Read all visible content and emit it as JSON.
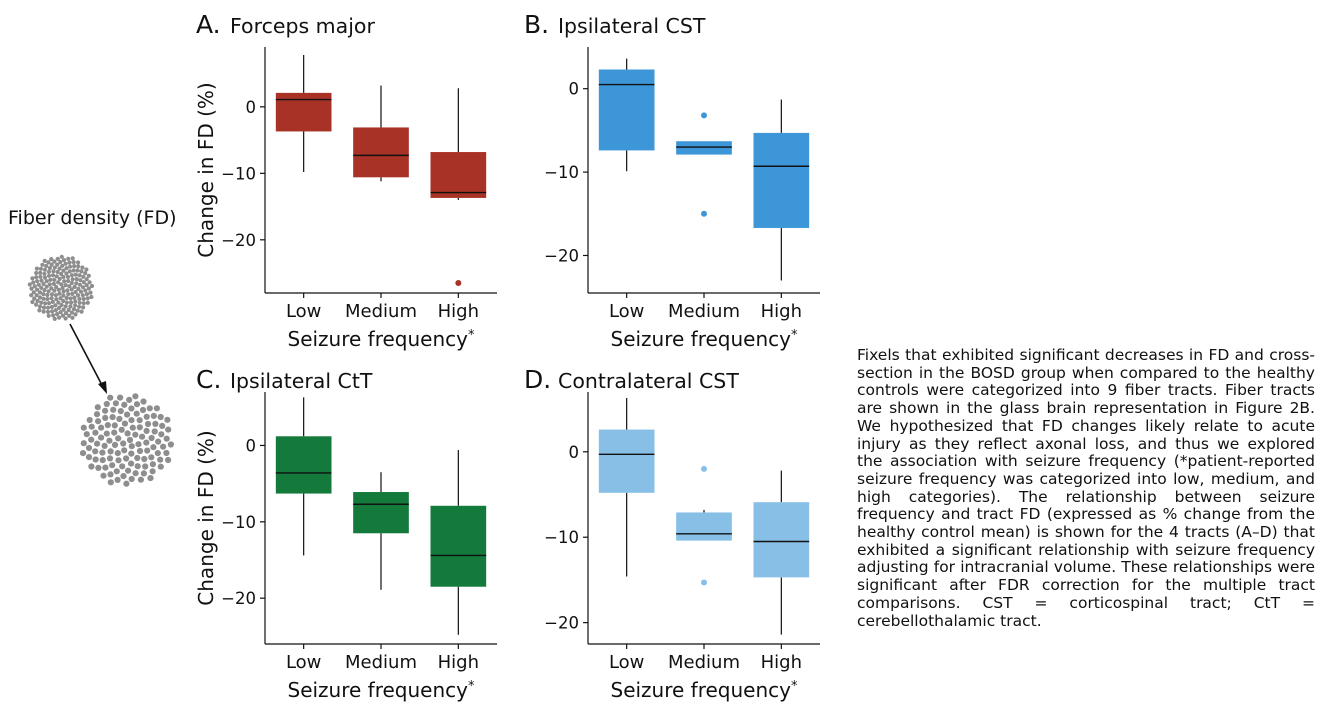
{
  "legend_schematic": {
    "label": "Fiber density (FD)",
    "dot_color": "#8e8e8e"
  },
  "colors": {
    "forceps_major": "#a93226",
    "ipsilateral_cst": "#3c96d7",
    "ipsilateral_ctt": "#137a3c",
    "contralateral_cst": "#88bfe6"
  },
  "caption": "Fixels that exhibited significant decreases in FD and cross-section in the BOSD group when compared to the healthy controls were categorized into 9 fiber tracts. Fiber tracts are shown in the glass brain representation in Figure 2B. We hypothesized that FD changes likely relate to acute injury as they reflect axonal loss, and thus we explored the association with seizure frequency (*patient-reported seizure frequency was categorized into low, medium, and high categories). The relationship between seizure frequency and tract FD (expressed as % change from the healthy control mean) is shown for the 4 tracts (A–D) that exhibited a significant relationship with seizure frequency adjusting for intracranial volume. These relationships were significant after FDR correction for the multiple tract comparisons. CST = corticospinal tract; CtT = cerebellothalamic tract.",
  "chart_data": [
    {
      "type": "box",
      "panel": "A.",
      "title": "Forceps major",
      "ylabel": "Change in FD (%)",
      "xlabel": "Seizure frequency*",
      "categories": [
        "Low",
        "Medium",
        "High"
      ],
      "ylim": [
        -28,
        9
      ],
      "yticks": [
        0,
        -10,
        -20
      ],
      "color": "#a93226",
      "boxes": [
        {
          "whisker_low": -9.8,
          "q1": -3.7,
          "median": 1.1,
          "q3": 2.1,
          "whisker_high": 7.8,
          "outliers": []
        },
        {
          "whisker_low": -11.2,
          "q1": -10.6,
          "median": -7.3,
          "q3": -3.1,
          "whisker_high": 3.2,
          "outliers": []
        },
        {
          "whisker_low": -14.0,
          "q1": -13.7,
          "median": -12.9,
          "q3": -6.8,
          "whisker_high": 2.8,
          "outliers": [
            -26.5
          ]
        }
      ]
    },
    {
      "type": "box",
      "panel": "B.",
      "title": "Ipsilateral CST",
      "ylabel": "",
      "xlabel": "Seizure frequency*",
      "categories": [
        "Low",
        "Medium",
        "High"
      ],
      "ylim": [
        -24.5,
        5
      ],
      "yticks": [
        0,
        -10,
        -20
      ],
      "color": "#3c96d7",
      "boxes": [
        {
          "whisker_low": -9.9,
          "q1": -7.4,
          "median": 0.5,
          "q3": 2.3,
          "whisker_high": 3.6,
          "outliers": []
        },
        {
          "whisker_low": -7.9,
          "q1": -7.9,
          "median": -7.0,
          "q3": -6.3,
          "whisker_high": -6.3,
          "outliers": [
            -3.2,
            -15.0
          ]
        },
        {
          "whisker_low": -23.0,
          "q1": -16.7,
          "median": -9.3,
          "q3": -5.3,
          "whisker_high": -1.3,
          "outliers": []
        }
      ]
    },
    {
      "type": "box",
      "panel": "C.",
      "title": "Ipsilateral CtT",
      "ylabel": "Change in FD (%)",
      "xlabel": "Seizure frequency*",
      "categories": [
        "Low",
        "Medium",
        "High"
      ],
      "ylim": [
        -26,
        7
      ],
      "yticks": [
        0,
        -10,
        -20
      ],
      "color": "#137a3c",
      "boxes": [
        {
          "whisker_low": -14.4,
          "q1": -6.3,
          "median": -3.6,
          "q3": 1.2,
          "whisker_high": 6.3,
          "outliers": []
        },
        {
          "whisker_low": -18.9,
          "q1": -11.5,
          "median": -7.7,
          "q3": -6.1,
          "whisker_high": -3.5,
          "outliers": []
        },
        {
          "whisker_low": -24.8,
          "q1": -18.5,
          "median": -14.4,
          "q3": -7.9,
          "whisker_high": -0.6,
          "outliers": []
        }
      ]
    },
    {
      "type": "box",
      "panel": "D.",
      "title": "Contralateral CST",
      "ylabel": "",
      "xlabel": "Seizure frequency*",
      "categories": [
        "Low",
        "Medium",
        "High"
      ],
      "ylim": [
        -22.5,
        7
      ],
      "yticks": [
        0,
        -10,
        -20
      ],
      "color": "#88bfe6",
      "boxes": [
        {
          "whisker_low": -14.6,
          "q1": -4.8,
          "median": -0.3,
          "q3": 2.6,
          "whisker_high": 6.3,
          "outliers": []
        },
        {
          "whisker_low": -10.4,
          "q1": -10.4,
          "median": -9.6,
          "q3": -7.1,
          "whisker_high": -6.8,
          "outliers": [
            -2.0,
            -15.3
          ]
        },
        {
          "whisker_low": -21.4,
          "q1": -14.7,
          "median": -10.5,
          "q3": -5.9,
          "whisker_high": -2.2,
          "outliers": []
        }
      ]
    }
  ]
}
